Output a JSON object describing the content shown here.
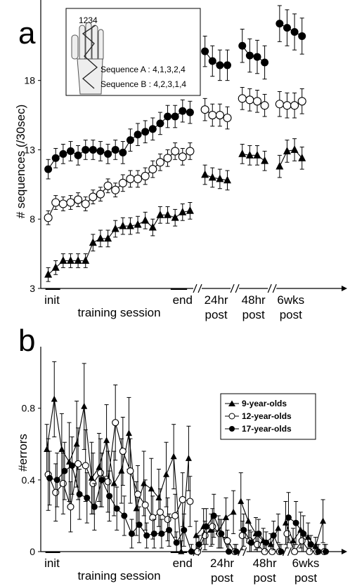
{
  "colors": {
    "ink": "#000000",
    "open_fill": "#ffffff"
  },
  "chart_data": [
    {
      "type": "line",
      "panel_label": "a",
      "ylabel": "# sequences (/30sec)",
      "ylim": [
        3,
        23.5
      ],
      "yticks": [
        3,
        8,
        13,
        18
      ],
      "xlim": [
        -1,
        39.3
      ],
      "x_breaks_after": [
        19,
        24,
        29
      ],
      "categories": [
        {
          "label": "init",
          "x": 0.5,
          "lines": 1
        },
        {
          "label": "training session",
          "x": 9.5,
          "lines": 1
        },
        {
          "label": "end",
          "x": 18,
          "lines": 1
        },
        {
          "label": "24hr post",
          "x": 22.5,
          "lines": 2
        },
        {
          "label": "48hr post",
          "x": 27.5,
          "lines": 2
        },
        {
          "label": "6wks post",
          "x": 32.5,
          "lines": 2
        }
      ],
      "x": [
        0,
        1,
        2,
        3,
        4,
        5,
        6,
        7,
        8,
        9,
        10,
        11,
        12,
        13,
        14,
        15,
        16,
        17,
        18,
        19,
        21,
        22,
        23,
        24,
        26,
        27,
        28,
        29,
        31,
        32,
        33,
        34
      ],
      "segments": [
        [
          0,
          19
        ],
        [
          21,
          24
        ],
        [
          26,
          29
        ],
        [
          31,
          34
        ]
      ],
      "series": [
        {
          "name": "9-year-olds",
          "marker": "triangle",
          "values": [
            4.0,
            4.5,
            5.0,
            5.0,
            5.0,
            5.0,
            6.3,
            6.6,
            6.6,
            7.3,
            7.5,
            7.5,
            7.6,
            7.9,
            7.4,
            8.3,
            8.3,
            8.1,
            8.5,
            8.6,
            11.2,
            11.0,
            10.9,
            10.8,
            12.7,
            12.6,
            12.6,
            12.2,
            11.8,
            12.9,
            13.0,
            12.4
          ],
          "errors": [
            0.5,
            0.5,
            0.5,
            0.5,
            0.5,
            0.5,
            0.6,
            0.6,
            0.6,
            0.6,
            0.6,
            0.6,
            0.6,
            0.6,
            0.6,
            0.6,
            0.6,
            0.6,
            0.6,
            0.6,
            0.7,
            0.7,
            0.7,
            0.7,
            0.7,
            0.7,
            0.7,
            0.7,
            0.8,
            0.8,
            0.8,
            0.8
          ]
        },
        {
          "name": "12-year-olds",
          "marker": "circle-open",
          "values": [
            8.1,
            9.2,
            9.1,
            9.2,
            9.4,
            9.1,
            9.6,
            9.8,
            10.4,
            10.1,
            10.6,
            10.9,
            10.9,
            11.1,
            11.6,
            12.1,
            12.4,
            12.9,
            12.5,
            12.9,
            15.9,
            15.5,
            15.5,
            15.3,
            16.7,
            16.6,
            16.5,
            16.2,
            16.3,
            16.2,
            16.2,
            16.5
          ],
          "errors": [
            0.5,
            0.5,
            0.5,
            0.5,
            0.5,
            0.5,
            0.5,
            0.5,
            0.5,
            0.5,
            0.6,
            0.6,
            0.6,
            0.6,
            0.6,
            0.6,
            0.6,
            0.6,
            0.6,
            0.6,
            0.8,
            0.8,
            0.8,
            0.8,
            0.8,
            0.8,
            0.8,
            0.8,
            0.9,
            0.9,
            0.9,
            0.9
          ]
        },
        {
          "name": "17-year-olds",
          "marker": "circle-filled",
          "values": [
            11.6,
            12.4,
            12.7,
            12.9,
            12.6,
            13.0,
            13.0,
            12.9,
            12.7,
            13.0,
            12.8,
            13.7,
            14.1,
            14.3,
            14.5,
            14.9,
            15.4,
            15.4,
            15.8,
            15.7,
            20.1,
            19.4,
            19.1,
            19.1,
            20.5,
            19.8,
            19.7,
            19.3,
            22.1,
            21.8,
            21.5,
            21.2
          ],
          "errors": [
            0.7,
            0.7,
            0.7,
            0.7,
            0.7,
            0.7,
            0.7,
            0.7,
            0.7,
            0.7,
            0.8,
            0.8,
            0.8,
            0.8,
            0.8,
            0.8,
            0.8,
            0.8,
            0.8,
            0.8,
            1.1,
            1.1,
            1.1,
            1.1,
            1.2,
            1.2,
            1.2,
            1.2,
            1.3,
            1.3,
            1.3,
            1.3
          ]
        }
      ],
      "inset": {
        "finger_label": "1234",
        "sequences": [
          "Sequence A : 4,1,3,2,4",
          "Sequence B : 4,2,3,1,4"
        ]
      }
    },
    {
      "type": "line",
      "panel_label": "b",
      "ylabel": "#errors",
      "ylim": [
        0,
        1.12
      ],
      "yticks": [
        0,
        0.4,
        0.8
      ],
      "xlim": [
        -1,
        39.3
      ],
      "x_breaks_after": [
        19,
        25,
        31
      ],
      "categories": [
        {
          "label": "init",
          "x": 0.5,
          "lines": 1
        },
        {
          "label": "training session",
          "x": 9.5,
          "lines": 1
        },
        {
          "label": "end",
          "x": 18,
          "lines": 1
        },
        {
          "label": "24hr post",
          "x": 23.3,
          "lines": 2
        },
        {
          "label": "48hr post",
          "x": 29,
          "lines": 2
        },
        {
          "label": "6wks post",
          "x": 34.5,
          "lines": 2
        }
      ],
      "x": [
        0,
        1,
        2,
        3,
        4,
        5,
        6,
        7,
        8,
        9,
        10,
        11,
        12,
        13,
        14,
        15,
        16,
        17,
        18,
        19,
        20,
        21,
        22,
        23,
        24,
        25,
        26,
        27,
        28,
        29,
        30,
        31,
        32,
        33,
        34,
        35,
        36,
        37
      ],
      "segments": [
        [
          0,
          19
        ],
        [
          20,
          25
        ],
        [
          26,
          31
        ],
        [
          32,
          37
        ]
      ],
      "legend": {
        "position": "upper-right",
        "entries": [
          "9-year-olds",
          "12-year-olds",
          "17-year-olds"
        ]
      },
      "series": [
        {
          "name": "9-year-olds",
          "marker": "triangle",
          "values": [
            0.57,
            0.85,
            0.57,
            0.5,
            0.6,
            0.81,
            0.41,
            0.47,
            0.62,
            0.38,
            0.45,
            0.66,
            0.24,
            0.38,
            0.35,
            0.3,
            0.43,
            0.53,
            0.0,
            0.52,
            0.09,
            0.14,
            0.12,
            0.11,
            0.19,
            0.22,
            0.28,
            0.17,
            0.1,
            0.06,
            0.04,
            0.13,
            0.16,
            0.06,
            0.12,
            0.08,
            0.03,
            0.17
          ],
          "errors": [
            0.14,
            0.21,
            0.2,
            0.22,
            0.24,
            0.24,
            0.2,
            0.19,
            0.2,
            0.18,
            0.18,
            0.2,
            0.15,
            0.18,
            0.17,
            0.16,
            0.18,
            0.18,
            0.06,
            0.18,
            0.08,
            0.1,
            0.09,
            0.09,
            0.11,
            0.12,
            0.16,
            0.12,
            0.09,
            0.07,
            0.06,
            0.08,
            0.12,
            0.07,
            0.1,
            0.08,
            0.05,
            0.12
          ]
        },
        {
          "name": "12-year-olds",
          "marker": "circle-open",
          "values": [
            0.43,
            0.33,
            0.38,
            0.25,
            0.49,
            0.48,
            0.38,
            0.44,
            0.39,
            0.72,
            0.56,
            0.45,
            0.32,
            0.26,
            0.19,
            0.22,
            0.18,
            0.2,
            0.29,
            0.28,
            0.0,
            0.09,
            0.14,
            0.1,
            0.06,
            0.0,
            0.09,
            0.06,
            0.04,
            0.0,
            0.0,
            0.0,
            0.1,
            0.0,
            0.06,
            0.0,
            0.0,
            0.0
          ],
          "errors": [
            0.2,
            0.16,
            0.17,
            0.14,
            0.2,
            0.2,
            0.17,
            0.19,
            0.17,
            0.21,
            0.19,
            0.18,
            0.16,
            0.14,
            0.12,
            0.13,
            0.12,
            0.12,
            0.15,
            0.14,
            0.04,
            0.08,
            0.1,
            0.08,
            0.06,
            0.04,
            0.08,
            0.06,
            0.05,
            0.04,
            0.04,
            0.04,
            0.08,
            0.04,
            0.06,
            0.04,
            0.04,
            0.04
          ]
        },
        {
          "name": "17-year-olds",
          "marker": "circle-filled",
          "values": [
            0.41,
            0.4,
            0.45,
            0.48,
            0.32,
            0.3,
            0.25,
            0.4,
            0.31,
            0.24,
            0.2,
            0.1,
            0.15,
            0.09,
            0.1,
            0.1,
            0.12,
            0.05,
            0.12,
            0.0,
            0.04,
            0.14,
            0.2,
            0.1,
            0.0,
            0.0,
            0.12,
            0.05,
            0.1,
            0.05,
            0.09,
            0.0,
            0.19,
            0.16,
            0.1,
            0.04,
            0.0,
            0.0
          ],
          "errors": [
            0.15,
            0.15,
            0.16,
            0.16,
            0.14,
            0.14,
            0.13,
            0.15,
            0.14,
            0.12,
            0.11,
            0.08,
            0.1,
            0.07,
            0.08,
            0.08,
            0.09,
            0.06,
            0.09,
            0.04,
            0.05,
            0.1,
            0.12,
            0.08,
            0.04,
            0.04,
            0.09,
            0.06,
            0.08,
            0.06,
            0.08,
            0.04,
            0.14,
            0.12,
            0.1,
            0.05,
            0.04,
            0.04
          ]
        }
      ]
    }
  ]
}
